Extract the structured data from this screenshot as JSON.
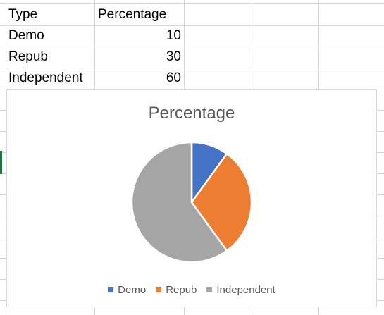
{
  "table": {
    "headers": [
      "Type",
      "Percentage"
    ],
    "rows": [
      {
        "type": "Demo",
        "percentage": "10"
      },
      {
        "type": "Repub",
        "percentage": "30"
      },
      {
        "type": "Independent",
        "percentage": "60"
      }
    ]
  },
  "colors": {
    "grid": "#d4d4d4",
    "selection": "#217346",
    "demo": "#4472c4",
    "repub": "#ed7d31",
    "independent": "#a5a5a5"
  },
  "chart_data": {
    "type": "pie",
    "title": "Percentage",
    "categories": [
      "Demo",
      "Repub",
      "Independent"
    ],
    "values": [
      10,
      30,
      60
    ],
    "colors": [
      "#4472c4",
      "#ed7d31",
      "#a5a5a5"
    ],
    "legend": "bottom",
    "legend_entries": [
      "Demo",
      "Repub",
      "Independent"
    ]
  }
}
